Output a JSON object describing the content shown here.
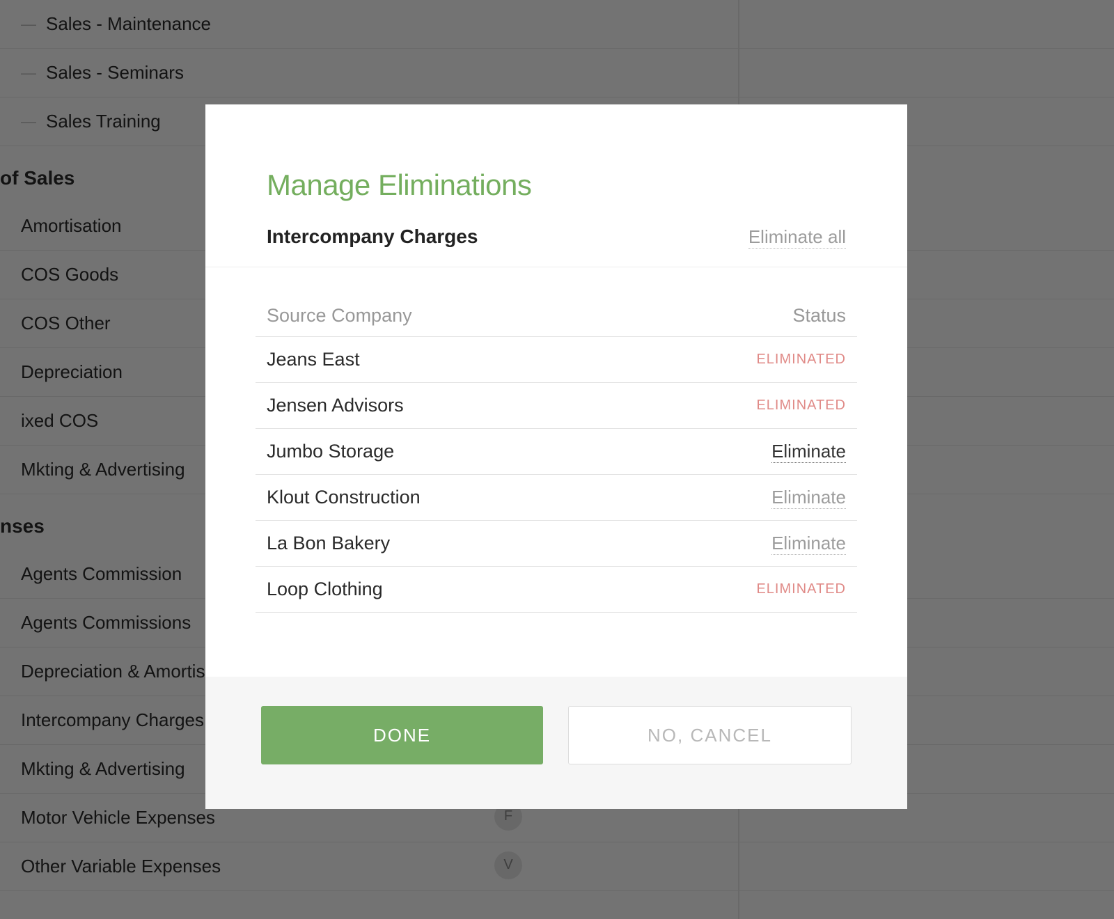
{
  "background": {
    "items": [
      {
        "type": "row",
        "label": "Sales - Maintenance",
        "dash": true
      },
      {
        "type": "row",
        "label": "Sales - Seminars",
        "dash": true
      },
      {
        "type": "row",
        "label": "Sales Training",
        "dash": true
      },
      {
        "type": "section",
        "label": "of Sales"
      },
      {
        "type": "row",
        "label": "Amortisation"
      },
      {
        "type": "row",
        "label": "COS Goods"
      },
      {
        "type": "row",
        "label": "COS Other"
      },
      {
        "type": "row",
        "label": "Depreciation"
      },
      {
        "type": "row",
        "label": "ixed COS"
      },
      {
        "type": "row",
        "label": "Mkting & Advertising"
      },
      {
        "type": "section",
        "label": "nses"
      },
      {
        "type": "row",
        "label": "Agents Commission"
      },
      {
        "type": "row",
        "label": "Agents Commissions"
      },
      {
        "type": "row",
        "label": "Depreciation & Amortisat"
      },
      {
        "type": "row",
        "label": "Intercompany Charges"
      },
      {
        "type": "row",
        "label": "Mkting & Advertising"
      },
      {
        "type": "row",
        "label": "Motor Vehicle Expenses",
        "badge": "F"
      },
      {
        "type": "row",
        "label": "Other Variable Expenses",
        "badge": "V"
      }
    ]
  },
  "modal": {
    "title": "Manage Eliminations",
    "account_name": "Intercompany Charges",
    "eliminate_all_label": "Eliminate all",
    "columns": {
      "source": "Source Company",
      "status": "Status"
    },
    "status_eliminated_label": "ELIMINATED",
    "eliminate_action_label": "Eliminate",
    "rows": [
      {
        "name": "Jeans East",
        "status": "eliminated"
      },
      {
        "name": "Jensen Advisors",
        "status": "eliminated"
      },
      {
        "name": "Jumbo Storage",
        "status": "action-dark"
      },
      {
        "name": "Klout Construction",
        "status": "action"
      },
      {
        "name": "La Bon Bakery",
        "status": "action"
      },
      {
        "name": "Loop Clothing",
        "status": "eliminated"
      }
    ],
    "buttons": {
      "done": "DONE",
      "cancel": "NO, CANCEL"
    }
  },
  "colors": {
    "accent_green": "#74ae5e",
    "button_green": "#77ad66",
    "eliminated_red": "#e08a87",
    "muted_grey": "#9c9c9c"
  }
}
